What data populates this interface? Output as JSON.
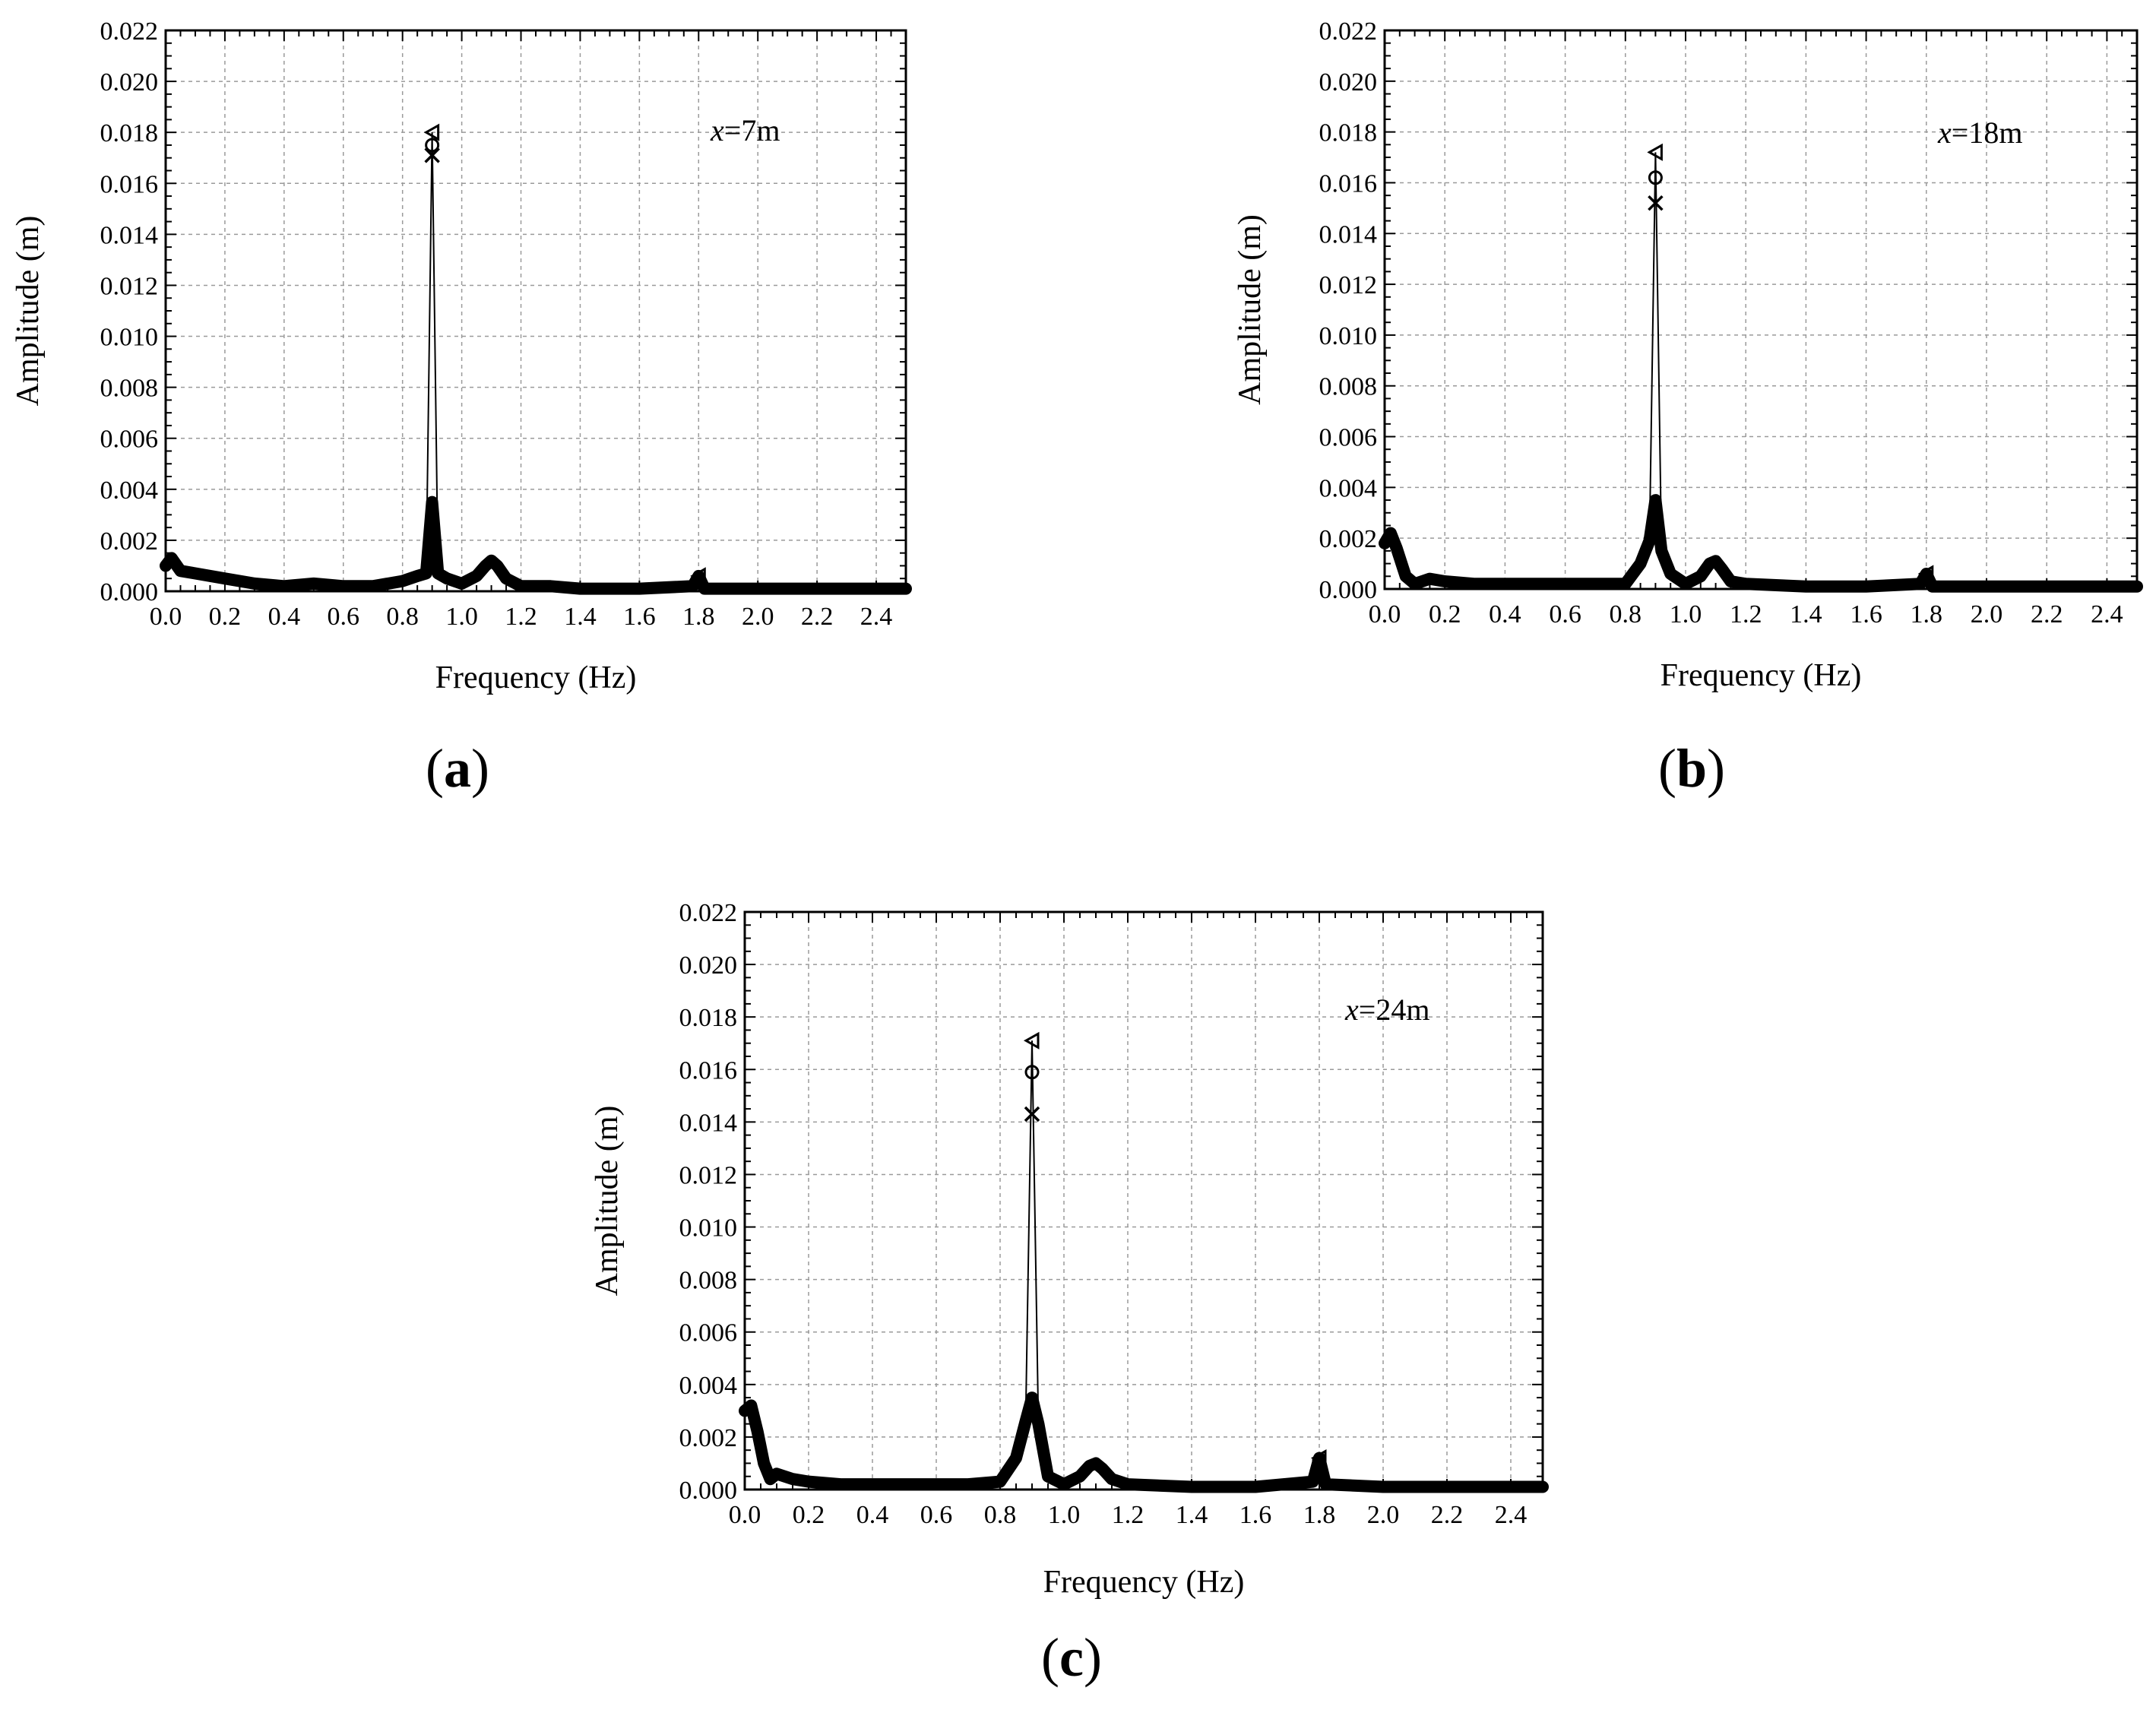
{
  "figure": {
    "captions": [
      "a",
      "b",
      "c"
    ]
  },
  "chart_data": [
    {
      "panel": "a",
      "type": "line",
      "xlabel": "Frequency (Hz)",
      "ylabel": "Amplitude (m)",
      "xlim": [
        0.0,
        2.5
      ],
      "ylim": [
        0.0,
        0.022
      ],
      "xticks": [
        "0.0",
        "0.2",
        "0.4",
        "0.6",
        "0.8",
        "1.0",
        "1.2",
        "1.4",
        "1.6",
        "1.8",
        "2.0",
        "2.2",
        "2.4"
      ],
      "yticks": [
        "0.000",
        "0.002",
        "0.004",
        "0.006",
        "0.008",
        "0.010",
        "0.012",
        "0.014",
        "0.016",
        "0.018",
        "0.020",
        "0.022"
      ],
      "grid": true,
      "annotation": {
        "var": "x",
        "text": "=7m"
      },
      "series": [
        {
          "marker": "triangle",
          "x": [
            0.0,
            0.02,
            0.05,
            0.1,
            0.2,
            0.3,
            0.4,
            0.5,
            0.6,
            0.7,
            0.8,
            0.85,
            0.88,
            0.9,
            0.92,
            0.95,
            1.0,
            1.05,
            1.08,
            1.1,
            1.12,
            1.15,
            1.2,
            1.3,
            1.4,
            1.6,
            1.78,
            1.8,
            1.82,
            2.0,
            2.2,
            2.5
          ],
          "y": [
            0.001,
            0.0013,
            0.0008,
            0.0007,
            0.0005,
            0.0003,
            0.0002,
            0.0003,
            0.0002,
            0.0002,
            0.0004,
            0.0006,
            0.0007,
            0.018,
            0.0007,
            0.0005,
            0.0003,
            0.0006,
            0.001,
            0.0012,
            0.001,
            0.0005,
            0.0002,
            0.0002,
            0.0001,
            0.0001,
            0.0002,
            0.0006,
            0.0001,
            0.0001,
            0.0001,
            0.0001
          ]
        },
        {
          "marker": "circle",
          "x": [
            0.9
          ],
          "y": [
            0.0175
          ]
        },
        {
          "marker": "cross",
          "x": [
            0.9
          ],
          "y": [
            0.0171
          ]
        }
      ]
    },
    {
      "panel": "b",
      "type": "line",
      "xlabel": "Frequency (Hz)",
      "ylabel": "Amplitude (m)",
      "xlim": [
        0.0,
        2.5
      ],
      "ylim": [
        0.0,
        0.022
      ],
      "xticks": [
        "0.0",
        "0.2",
        "0.4",
        "0.6",
        "0.8",
        "1.0",
        "1.2",
        "1.4",
        "1.6",
        "1.8",
        "2.0",
        "2.2",
        "2.4"
      ],
      "yticks": [
        "0.000",
        "0.002",
        "0.004",
        "0.006",
        "0.008",
        "0.010",
        "0.012",
        "0.014",
        "0.016",
        "0.018",
        "0.020",
        "0.022"
      ],
      "grid": true,
      "annotation": {
        "var": "x",
        "text": "=18m"
      },
      "series": [
        {
          "marker": "triangle",
          "x": [
            0.0,
            0.02,
            0.04,
            0.07,
            0.1,
            0.15,
            0.2,
            0.3,
            0.4,
            0.5,
            0.6,
            0.7,
            0.8,
            0.85,
            0.88,
            0.9,
            0.92,
            0.95,
            1.0,
            1.05,
            1.08,
            1.1,
            1.12,
            1.15,
            1.2,
            1.4,
            1.6,
            1.78,
            1.8,
            1.82,
            2.0,
            2.2,
            2.5
          ],
          "y": [
            0.0018,
            0.0022,
            0.0016,
            0.0005,
            0.0002,
            0.0004,
            0.0003,
            0.0002,
            0.0002,
            0.0002,
            0.0002,
            0.0002,
            0.0002,
            0.001,
            0.0019,
            0.0172,
            0.0015,
            0.0006,
            0.0002,
            0.0005,
            0.001,
            0.0011,
            0.0008,
            0.0003,
            0.0002,
            0.0001,
            0.0001,
            0.0002,
            0.0006,
            0.0001,
            0.0001,
            0.0001,
            0.0001
          ]
        },
        {
          "marker": "circle",
          "x": [
            0.9
          ],
          "y": [
            0.0162
          ]
        },
        {
          "marker": "cross",
          "x": [
            0.9
          ],
          "y": [
            0.0152
          ]
        }
      ]
    },
    {
      "panel": "c",
      "type": "line",
      "xlabel": "Frequency (Hz)",
      "ylabel": "Amplitude (m)",
      "xlim": [
        0.0,
        2.5
      ],
      "ylim": [
        0.0,
        0.022
      ],
      "xticks": [
        "0.0",
        "0.2",
        "0.4",
        "0.6",
        "0.8",
        "1.0",
        "1.2",
        "1.4",
        "1.6",
        "1.8",
        "2.0",
        "2.2",
        "2.4"
      ],
      "yticks": [
        "0.000",
        "0.002",
        "0.004",
        "0.006",
        "0.008",
        "0.010",
        "0.012",
        "0.014",
        "0.016",
        "0.018",
        "0.020",
        "0.022"
      ],
      "grid": true,
      "annotation": {
        "var": "x",
        "text": "=24m"
      },
      "series": [
        {
          "marker": "triangle",
          "x": [
            0.0,
            0.02,
            0.04,
            0.06,
            0.08,
            0.1,
            0.15,
            0.2,
            0.3,
            0.4,
            0.5,
            0.6,
            0.7,
            0.8,
            0.85,
            0.88,
            0.9,
            0.92,
            0.95,
            1.0,
            1.05,
            1.08,
            1.1,
            1.12,
            1.15,
            1.2,
            1.4,
            1.6,
            1.78,
            1.8,
            1.82,
            2.0,
            2.2,
            2.5
          ],
          "y": [
            0.003,
            0.0032,
            0.0022,
            0.001,
            0.0004,
            0.0006,
            0.0004,
            0.0003,
            0.0002,
            0.0002,
            0.0002,
            0.0002,
            0.0002,
            0.0003,
            0.0012,
            0.0026,
            0.0171,
            0.0025,
            0.0005,
            0.0002,
            0.0005,
            0.0009,
            0.001,
            0.0008,
            0.0004,
            0.0002,
            0.0001,
            0.0001,
            0.0003,
            0.0012,
            0.0002,
            0.0001,
            0.0001,
            0.0001
          ]
        },
        {
          "marker": "circle",
          "x": [
            0.9,
            1.8
          ],
          "y": [
            0.0159,
            0.0011
          ]
        },
        {
          "marker": "cross",
          "x": [
            0.9,
            1.8
          ],
          "y": [
            0.0143,
            0.0005
          ]
        }
      ]
    }
  ]
}
